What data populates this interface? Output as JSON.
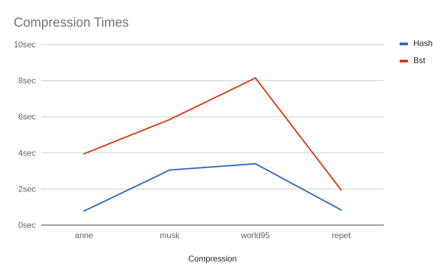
{
  "chart_data": {
    "type": "line",
    "title": "Compression Times",
    "xlabel": "Compression",
    "ylabel": "",
    "categories": [
      "anne",
      "musk",
      "world95",
      "repet"
    ],
    "ylim": [
      0,
      10
    ],
    "yticks": [
      0,
      2,
      4,
      6,
      8,
      10
    ],
    "ytick_labels": [
      "0sec",
      "2sec",
      "4sec",
      "6sec",
      "8sec",
      "10sec"
    ],
    "grid": true,
    "legend_position": "right",
    "series": [
      {
        "name": "Hash",
        "color": "#3366cc",
        "values": [
          0.78,
          3.05,
          3.4,
          0.84
        ]
      },
      {
        "name": "Bst",
        "color": "#dc3912",
        "values": [
          3.95,
          5.85,
          8.15,
          1.95
        ]
      }
    ]
  }
}
